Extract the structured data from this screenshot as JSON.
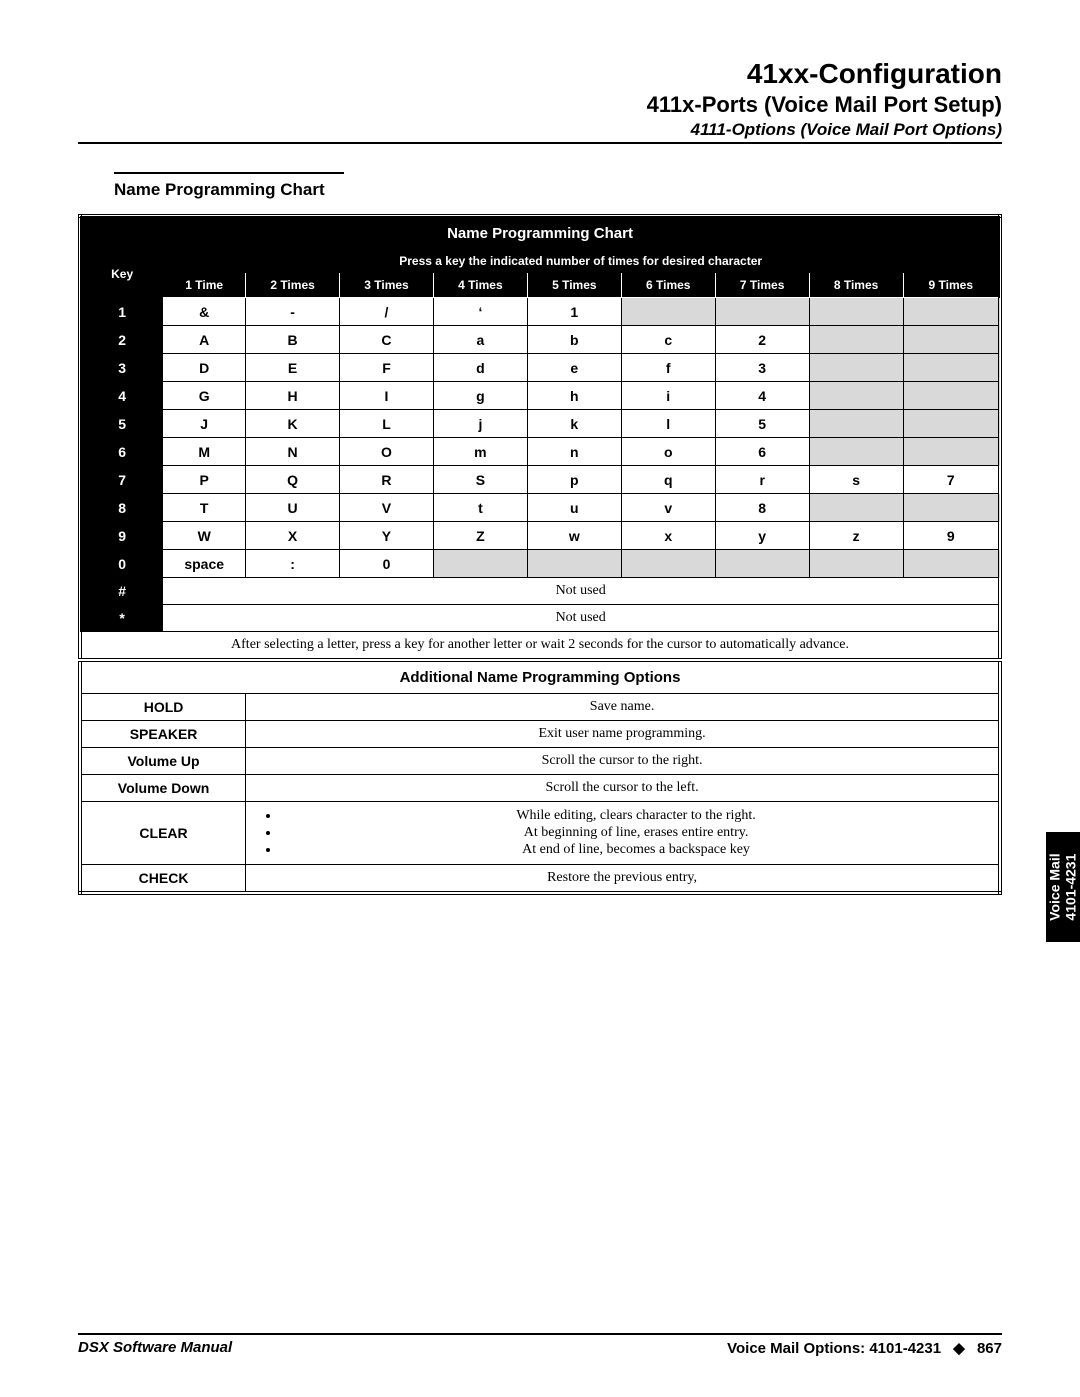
{
  "header": {
    "title": "41xx-Configuration",
    "subtitle": "411x-Ports (Voice Mail Port Setup)",
    "subsub": "4111-Options (Voice Mail Port Options)"
  },
  "section_title": "Name Programming Chart",
  "chart": {
    "title": "Name Programming Chart",
    "subtitle": "Press a key the indicated number of times for desired character",
    "col_key": "Key",
    "cols": [
      "1 Time",
      "2 Times",
      "3 Times",
      "4 Times",
      "5 Times",
      "6 Times",
      "7 Times",
      "8 Times",
      "9 Times"
    ],
    "rows": [
      {
        "key": "1",
        "cells": [
          "&",
          "-",
          "/",
          "‘",
          "1",
          "",
          "",
          "",
          ""
        ],
        "shade": [
          0,
          0,
          0,
          0,
          0,
          1,
          1,
          1,
          1
        ]
      },
      {
        "key": "2",
        "cells": [
          "A",
          "B",
          "C",
          "a",
          "b",
          "c",
          "2",
          "",
          ""
        ],
        "shade": [
          0,
          0,
          0,
          0,
          0,
          0,
          0,
          1,
          1
        ]
      },
      {
        "key": "3",
        "cells": [
          "D",
          "E",
          "F",
          "d",
          "e",
          "f",
          "3",
          "",
          ""
        ],
        "shade": [
          0,
          0,
          0,
          0,
          0,
          0,
          0,
          1,
          1
        ]
      },
      {
        "key": "4",
        "cells": [
          "G",
          "H",
          "I",
          "g",
          "h",
          "i",
          "4",
          "",
          ""
        ],
        "shade": [
          0,
          0,
          0,
          0,
          0,
          0,
          0,
          1,
          1
        ]
      },
      {
        "key": "5",
        "cells": [
          "J",
          "K",
          "L",
          "j",
          "k",
          "l",
          "5",
          "",
          ""
        ],
        "shade": [
          0,
          0,
          0,
          0,
          0,
          0,
          0,
          1,
          1
        ]
      },
      {
        "key": "6",
        "cells": [
          "M",
          "N",
          "O",
          "m",
          "n",
          "o",
          "6",
          "",
          ""
        ],
        "shade": [
          0,
          0,
          0,
          0,
          0,
          0,
          0,
          1,
          1
        ]
      },
      {
        "key": "7",
        "cells": [
          "P",
          "Q",
          "R",
          "S",
          "p",
          "q",
          "r",
          "s",
          "7"
        ],
        "shade": [
          0,
          0,
          0,
          0,
          0,
          0,
          0,
          0,
          0
        ]
      },
      {
        "key": "8",
        "cells": [
          "T",
          "U",
          "V",
          "t",
          "u",
          "v",
          "8",
          "",
          ""
        ],
        "shade": [
          0,
          0,
          0,
          0,
          0,
          0,
          0,
          1,
          1
        ]
      },
      {
        "key": "9",
        "cells": [
          "W",
          "X",
          "Y",
          "Z",
          "w",
          "x",
          "y",
          "z",
          "9"
        ],
        "shade": [
          0,
          0,
          0,
          0,
          0,
          0,
          0,
          0,
          0
        ]
      },
      {
        "key": "0",
        "cells": [
          "space",
          ":",
          "0",
          "",
          "",
          "",
          "",
          "",
          ""
        ],
        "shade": [
          0,
          0,
          0,
          1,
          1,
          1,
          1,
          1,
          1
        ]
      }
    ],
    "notused_keys": [
      "#",
      "*"
    ],
    "notused_text": "Not used",
    "note": "After selecting a letter, press a key for another letter or wait 2 seconds for the cursor to automatically advance."
  },
  "options": {
    "title": "Additional Name Programming Options",
    "rows": [
      {
        "key": "HOLD",
        "desc": "Save name."
      },
      {
        "key": "SPEAKER",
        "desc": "Exit user name programming."
      },
      {
        "key": "Volume Up",
        "desc": "Scroll the cursor to the right."
      },
      {
        "key": "Volume Down",
        "desc": "Scroll the cursor to the left."
      },
      {
        "key": "CLEAR",
        "bullets": [
          "While editing, clears character to the right.",
          "At beginning of line, erases entire entry.",
          "At end of line, becomes a backspace key"
        ]
      },
      {
        "key": "CHECK",
        "desc": "Restore the previous entry,"
      }
    ]
  },
  "side_tab": {
    "line1": "Voice Mail",
    "line2": "4101-4231"
  },
  "footer": {
    "left": "DSX Software Manual",
    "right_section": "Voice Mail Options: 4101-4231",
    "page": "867"
  },
  "style": {
    "shaded_bg": "#d9d9d9",
    "black": "#000000",
    "white": "#ffffff"
  }
}
